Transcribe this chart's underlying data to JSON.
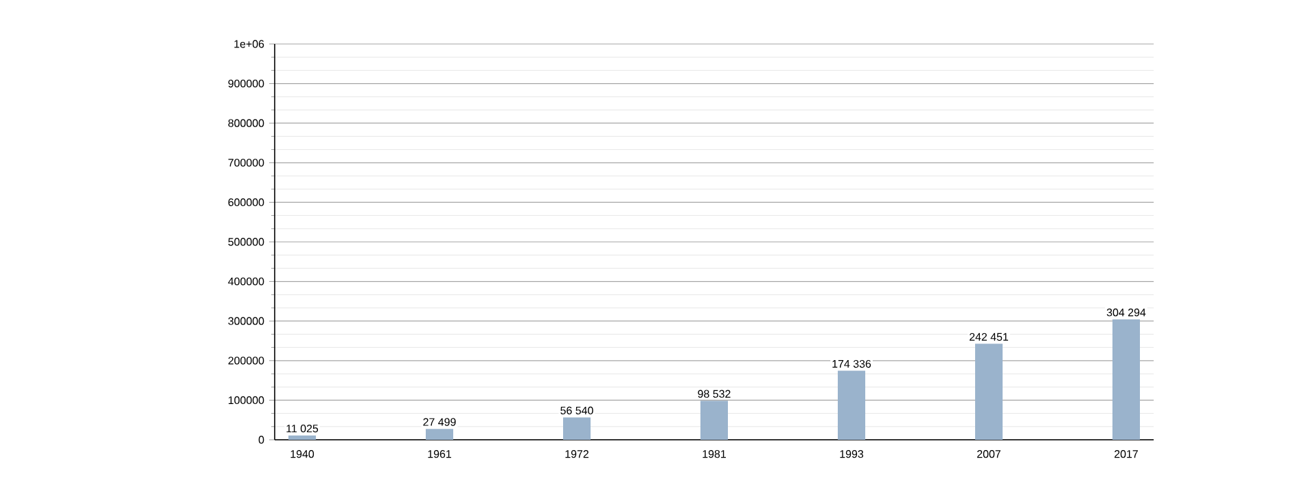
{
  "chart_data": {
    "type": "bar",
    "categories": [
      "1940",
      "1961",
      "1972",
      "1981",
      "1993",
      "2007",
      "2017"
    ],
    "values": [
      11025,
      27499,
      56540,
      98532,
      174336,
      242451,
      304294
    ],
    "value_labels": [
      "11 025",
      "27 499",
      "56 540",
      "98 532",
      "174 336",
      "242 451",
      "304 294"
    ],
    "color": "#9ab3cc",
    "ylim": [
      0,
      1000000
    ],
    "yticks": [
      0,
      100000,
      200000,
      300000,
      400000,
      500000,
      600000,
      700000,
      800000,
      900000,
      {
        "value": 1000000,
        "label": "1e+06"
      }
    ],
    "grid": "y"
  }
}
